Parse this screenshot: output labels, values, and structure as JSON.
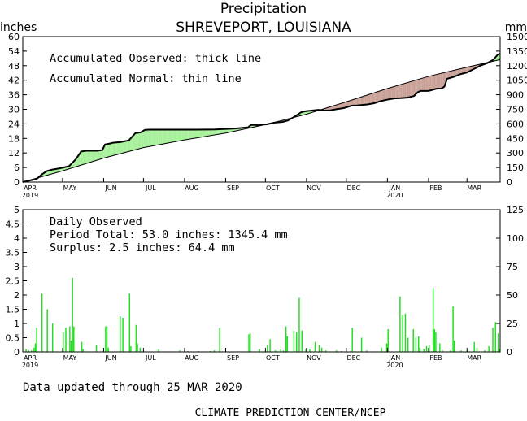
{
  "title": "Precipitation",
  "subtitle": "SHREVEPORT, LOUISIANA",
  "footer_updated": "Data updated through 25 MAR 2020",
  "footer_credit": "CLIMATE PREDICTION CENTER/NCEP",
  "colors": {
    "surplus": "#a6f09a",
    "deficit": "#c9a096",
    "bars": "#22dd22"
  },
  "chart_data": [
    {
      "type": "area",
      "name": "accumulated",
      "annotations": [
        "Accumulated Observed: thick line",
        "Accumulated Normal: thin line"
      ],
      "ylabel_left": "inches",
      "ylabel_right": "mm",
      "ylim": [
        0,
        60
      ],
      "yticks": [
        "0",
        "6",
        "12",
        "18",
        "24",
        "30",
        "36",
        "42",
        "48",
        "54",
        "60"
      ],
      "yticks_right": [
        "0",
        "150",
        "300",
        "450",
        "600",
        "750",
        "900",
        "1050",
        "1200",
        "1350",
        "1500"
      ],
      "xlim": [
        0,
        360
      ],
      "xticks": [
        {
          "x": 0,
          "label": "APR",
          "year": "2019"
        },
        {
          "x": 30,
          "label": "MAY"
        },
        {
          "x": 61,
          "label": "JUN"
        },
        {
          "x": 91,
          "label": "JUL"
        },
        {
          "x": 122,
          "label": "AUG"
        },
        {
          "x": 153,
          "label": "SEP"
        },
        {
          "x": 183,
          "label": "OCT"
        },
        {
          "x": 214,
          "label": "NOV"
        },
        {
          "x": 244,
          "label": "DEC"
        },
        {
          "x": 275,
          "label": "JAN",
          "year": "2020"
        },
        {
          "x": 306,
          "label": "FEB"
        },
        {
          "x": 335,
          "label": "MAR"
        }
      ],
      "series": [
        {
          "name": "Accumulated Observed",
          "role": "observed",
          "x": [
            0,
            4,
            8,
            11,
            14,
            18,
            22,
            26,
            30,
            35,
            40,
            44,
            48,
            52,
            56,
            60,
            62,
            65,
            68,
            74,
            80,
            85,
            89,
            92,
            95,
            100,
            108,
            118,
            130,
            145,
            160,
            170,
            172,
            175,
            178,
            181,
            184,
            190,
            196,
            200,
            205,
            210,
            213,
            218,
            223,
            228,
            232,
            236,
            242,
            248,
            252,
            256,
            260,
            265,
            270,
            275,
            280,
            285,
            290,
            295,
            298,
            300,
            306,
            312,
            316,
            318,
            320,
            325,
            330,
            335,
            340,
            345,
            350,
            355,
            358,
            360
          ],
          "y": [
            0,
            0.5,
            1.0,
            1.5,
            3.0,
            4.5,
            5.1,
            5.5,
            5.9,
            6.6,
            9.4,
            12.6,
            12.9,
            12.9,
            12.9,
            13.2,
            15.5,
            15.8,
            16.2,
            16.5,
            17.2,
            20.2,
            20.5,
            21.5,
            21.6,
            21.6,
            21.6,
            21.6,
            21.6,
            21.7,
            22.1,
            22.6,
            23.5,
            23.6,
            23.4,
            23.7,
            23.8,
            24.5,
            24.8,
            25.4,
            27.0,
            28.8,
            29.2,
            29.5,
            29.8,
            29.5,
            29.6,
            30.0,
            30.5,
            31.5,
            31.6,
            31.8,
            32.0,
            32.5,
            33.4,
            34.0,
            34.5,
            34.6,
            34.8,
            35.5,
            37.1,
            37.6,
            37.6,
            38.5,
            38.6,
            39.4,
            42.6,
            43.4,
            44.5,
            45.2,
            46.6,
            48.0,
            49.0,
            50.5,
            52.5,
            53.0
          ]
        },
        {
          "name": "Accumulated Normal",
          "role": "normal",
          "x": [
            0,
            30,
            61,
            91,
            122,
            153,
            183,
            214,
            244,
            275,
            306,
            335,
            360
          ],
          "y": [
            0,
            4.6,
            9.9,
            14.2,
            17.4,
            20.2,
            23.7,
            28.0,
            33.1,
            38.6,
            43.6,
            47.4,
            50.5
          ]
        }
      ]
    },
    {
      "type": "bar",
      "name": "daily",
      "annotations": [
        "Daily Observed",
        "Period Total:    53.0 inches:   1345.4 mm",
        "Surplus:     2.5 inches:    64.4 mm"
      ],
      "ylim": [
        0,
        5
      ],
      "yticks": [
        "0",
        "0.5",
        "1",
        "1.5",
        "2",
        "2.5",
        "3",
        "3.5",
        "4",
        "4.5",
        "5"
      ],
      "yticks_right": [
        "0",
        "25",
        "50",
        "75",
        "100",
        "125"
      ],
      "xlim": [
        0,
        360
      ],
      "xticks": [
        {
          "x": 0,
          "label": "APR",
          "year": "2019"
        },
        {
          "x": 30,
          "label": "MAY"
        },
        {
          "x": 61,
          "label": "JUN"
        },
        {
          "x": 91,
          "label": "JUL"
        },
        {
          "x": 122,
          "label": "AUG"
        },
        {
          "x": 153,
          "label": "SEP"
        },
        {
          "x": 183,
          "label": "OCT"
        },
        {
          "x": 214,
          "label": "NOV"
        },
        {
          "x": 244,
          "label": "DEC"
        },
        {
          "x": 275,
          "label": "JAN",
          "year": "2020"
        },
        {
          "x": 306,
          "label": "FEB"
        },
        {
          "x": 335,
          "label": "MAR"
        }
      ],
      "bars": [
        {
          "x": 2,
          "value": 0.1
        },
        {
          "x": 4,
          "value": 0.05
        },
        {
          "x": 6,
          "value": 0.05
        },
        {
          "x": 8,
          "value": 0.15
        },
        {
          "x": 9,
          "value": 0.3
        },
        {
          "x": 10,
          "value": 0.85
        },
        {
          "x": 14,
          "value": 2.05
        },
        {
          "x": 18,
          "value": 1.5
        },
        {
          "x": 22,
          "value": 1.0
        },
        {
          "x": 30,
          "value": 0.7
        },
        {
          "x": 32,
          "value": 0.85
        },
        {
          "x": 35,
          "value": 0.9
        },
        {
          "x": 36,
          "value": 0.4
        },
        {
          "x": 37,
          "value": 2.6
        },
        {
          "x": 38,
          "value": 0.9
        },
        {
          "x": 44,
          "value": 0.35
        },
        {
          "x": 45,
          "value": 0.1
        },
        {
          "x": 55,
          "value": 0.25
        },
        {
          "x": 62,
          "value": 0.9
        },
        {
          "x": 63,
          "value": 0.9
        },
        {
          "x": 64,
          "value": 0.15
        },
        {
          "x": 73,
          "value": 1.25
        },
        {
          "x": 75,
          "value": 1.2
        },
        {
          "x": 80,
          "value": 2.05
        },
        {
          "x": 81,
          "value": 0.2
        },
        {
          "x": 85,
          "value": 0.95
        },
        {
          "x": 86,
          "value": 0.3
        },
        {
          "x": 88,
          "value": 0.15
        },
        {
          "x": 102,
          "value": 0.1
        },
        {
          "x": 118,
          "value": 0.05
        },
        {
          "x": 124,
          "value": 0.03
        },
        {
          "x": 132,
          "value": 0.03
        },
        {
          "x": 141,
          "value": 0.03
        },
        {
          "x": 144,
          "value": 0.05
        },
        {
          "x": 148,
          "value": 0.85
        },
        {
          "x": 170,
          "value": 0.62
        },
        {
          "x": 171,
          "value": 0.65
        },
        {
          "x": 178,
          "value": 0.1
        },
        {
          "x": 184,
          "value": 0.25
        },
        {
          "x": 186,
          "value": 0.45
        },
        {
          "x": 190,
          "value": 0.05
        },
        {
          "x": 194,
          "value": 0.08
        },
        {
          "x": 196,
          "value": 0.05
        },
        {
          "x": 198,
          "value": 0.9
        },
        {
          "x": 199,
          "value": 0.55
        },
        {
          "x": 204,
          "value": 0.75
        },
        {
          "x": 206,
          "value": 0.7
        },
        {
          "x": 208,
          "value": 1.9
        },
        {
          "x": 210,
          "value": 0.75
        },
        {
          "x": 213,
          "value": 0.1
        },
        {
          "x": 216,
          "value": 0.1
        },
        {
          "x": 220,
          "value": 0.35
        },
        {
          "x": 223,
          "value": 0.25
        },
        {
          "x": 225,
          "value": 0.15
        },
        {
          "x": 228,
          "value": 0.05
        },
        {
          "x": 236,
          "value": 0.05
        },
        {
          "x": 240,
          "value": 0.03
        },
        {
          "x": 248,
          "value": 0.85
        },
        {
          "x": 255,
          "value": 0.5
        },
        {
          "x": 259,
          "value": 0.05
        },
        {
          "x": 270,
          "value": 0.15
        },
        {
          "x": 274,
          "value": 0.3
        },
        {
          "x": 275,
          "value": 0.8
        },
        {
          "x": 284,
          "value": 1.95
        },
        {
          "x": 286,
          "value": 1.3
        },
        {
          "x": 288,
          "value": 1.35
        },
        {
          "x": 290,
          "value": 0.5
        },
        {
          "x": 294,
          "value": 0.8
        },
        {
          "x": 296,
          "value": 0.5
        },
        {
          "x": 298,
          "value": 0.55
        },
        {
          "x": 299,
          "value": 0.15
        },
        {
          "x": 302,
          "value": 0.1
        },
        {
          "x": 304,
          "value": 0.2
        },
        {
          "x": 306,
          "value": 0.25
        },
        {
          "x": 309,
          "value": 2.25
        },
        {
          "x": 310,
          "value": 0.8
        },
        {
          "x": 311,
          "value": 0.7
        },
        {
          "x": 314,
          "value": 0.3
        },
        {
          "x": 316,
          "value": 0.05
        },
        {
          "x": 322,
          "value": 0.05
        },
        {
          "x": 324,
          "value": 1.6
        },
        {
          "x": 325,
          "value": 0.4
        },
        {
          "x": 330,
          "value": 0.05
        },
        {
          "x": 335,
          "value": 0.05
        },
        {
          "x": 340,
          "value": 0.35
        },
        {
          "x": 342,
          "value": 0.15
        },
        {
          "x": 348,
          "value": 0.05
        },
        {
          "x": 351,
          "value": 0.2
        },
        {
          "x": 354,
          "value": 0.85
        },
        {
          "x": 356,
          "value": 1.05
        },
        {
          "x": 358,
          "value": 0.65
        },
        {
          "x": 359,
          "value": 0.1
        }
      ]
    }
  ]
}
